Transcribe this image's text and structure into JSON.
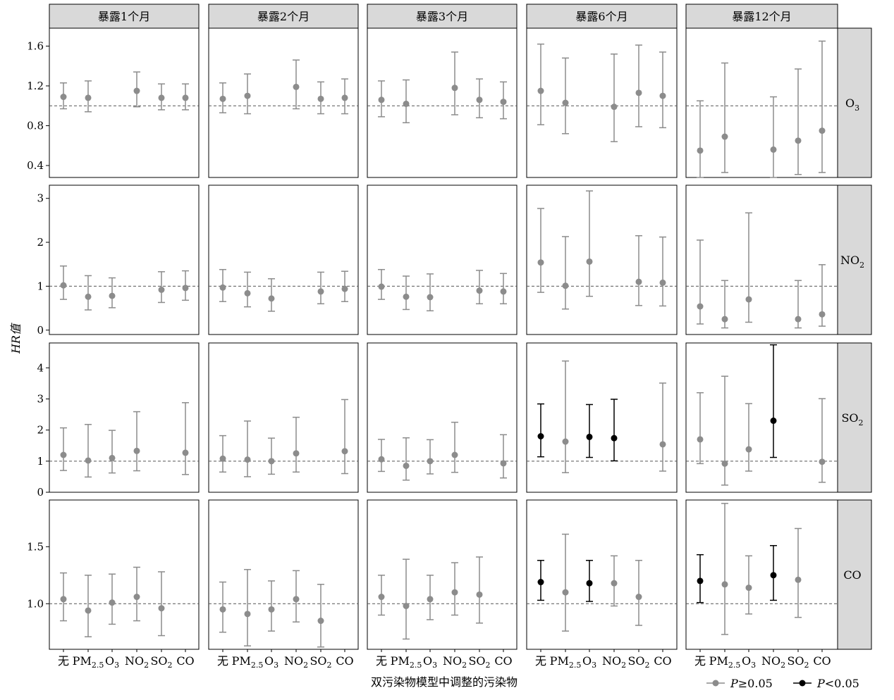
{
  "chart_data": {
    "type": "forest",
    "ylabel": "HR值",
    "xlabel": "双污染物模型中调整的污染物",
    "x_categories": [
      "无",
      "PM2.5",
      "O3",
      "NO2",
      "SO2",
      "CO"
    ],
    "x_tick_parts": [
      {
        "main": "无",
        "sub": ""
      },
      {
        "main": "PM",
        "sub": "2.5"
      },
      {
        "main": "O",
        "sub": "3"
      },
      {
        "main": "NO",
        "sub": "2"
      },
      {
        "main": "SO",
        "sub": "2"
      },
      {
        "main": "CO",
        "sub": ""
      }
    ],
    "columns": [
      "暴露1个月",
      "暴露2个月",
      "暴露3个月",
      "暴露6个月",
      "暴露12个月"
    ],
    "rows": [
      {
        "label": "O3",
        "label_main": "O",
        "label_sub": "3",
        "ylim": [
          0.28,
          1.78
        ],
        "yticks": [
          0.4,
          0.8,
          1.2,
          1.6
        ],
        "tick_labels": [
          "0.4",
          "0.8",
          "1.2",
          "1.6"
        ]
      },
      {
        "label": "NO2",
        "label_main": "NO",
        "label_sub": "2",
        "ylim": [
          -0.1,
          3.3
        ],
        "yticks": [
          0,
          1,
          2,
          3
        ],
        "tick_labels": [
          "0",
          "1",
          "2",
          "3"
        ]
      },
      {
        "label": "SO2",
        "label_main": "SO",
        "label_sub": "2",
        "ylim": [
          0,
          4.8
        ],
        "yticks": [
          0,
          1,
          2,
          3,
          4
        ],
        "tick_labels": [
          "0",
          "1",
          "2",
          "3",
          "4"
        ]
      },
      {
        "label": "CO",
        "label_main": "CO",
        "label_sub": "",
        "ylim": [
          0.6,
          1.91
        ],
        "yticks": [
          1.0,
          1.5
        ],
        "tick_labels": [
          "1.0",
          "1.5"
        ]
      }
    ],
    "reference_line": 1,
    "legend": [
      {
        "label": "P≥0.05",
        "label_italic": "P",
        "label_rest": "≥0.05",
        "color": "#8c8c8c"
      },
      {
        "label": "P<0.05",
        "label_italic": "P",
        "label_rest": "<0.05",
        "color": "#000000"
      }
    ],
    "colors": {
      "nonsig": "#8c8c8c",
      "sig": "#000000",
      "strip": "#d9d9d9"
    },
    "panels": [
      [
        [
          [
            1.09,
            0.97,
            1.23,
            false
          ],
          [
            1.08,
            0.94,
            1.25,
            false
          ],
          null,
          [
            1.15,
            0.99,
            1.34,
            false
          ],
          [
            1.08,
            0.96,
            1.22,
            false
          ],
          [
            1.08,
            0.96,
            1.22,
            false
          ]
        ],
        [
          [
            1.07,
            0.93,
            1.23,
            false
          ],
          [
            1.1,
            0.92,
            1.32,
            false
          ],
          null,
          [
            1.19,
            0.97,
            1.46,
            false
          ],
          [
            1.07,
            0.92,
            1.24,
            false
          ],
          [
            1.08,
            0.92,
            1.27,
            false
          ]
        ],
        [
          [
            1.06,
            0.89,
            1.25,
            false
          ],
          [
            1.02,
            0.83,
            1.26,
            false
          ],
          null,
          [
            1.18,
            0.91,
            1.54,
            false
          ],
          [
            1.06,
            0.88,
            1.27,
            false
          ],
          [
            1.04,
            0.87,
            1.24,
            false
          ]
        ],
        [
          [
            1.15,
            0.81,
            1.62,
            false
          ],
          [
            1.03,
            0.72,
            1.48,
            false
          ],
          null,
          [
            0.99,
            0.64,
            1.52,
            false
          ],
          [
            1.13,
            0.79,
            1.61,
            false
          ],
          [
            1.1,
            0.78,
            1.54,
            false
          ]
        ],
        [
          [
            0.55,
            0.28,
            1.05,
            false
          ],
          [
            0.69,
            0.33,
            1.43,
            false
          ],
          null,
          [
            0.56,
            0.28,
            1.09,
            false
          ],
          [
            0.65,
            0.31,
            1.37,
            false
          ],
          [
            0.75,
            0.33,
            1.65,
            false
          ]
        ]
      ],
      [
        [
          [
            1.02,
            0.7,
            1.46,
            false
          ],
          [
            0.76,
            0.46,
            1.24,
            false
          ],
          [
            0.78,
            0.51,
            1.19,
            false
          ],
          null,
          [
            0.92,
            0.63,
            1.33,
            false
          ],
          [
            0.96,
            0.68,
            1.35,
            false
          ]
        ],
        [
          [
            0.97,
            0.65,
            1.38,
            false
          ],
          [
            0.84,
            0.53,
            1.32,
            false
          ],
          [
            0.72,
            0.43,
            1.17,
            false
          ],
          null,
          [
            0.88,
            0.6,
            1.32,
            false
          ],
          [
            0.94,
            0.65,
            1.34,
            false
          ]
        ],
        [
          [
            0.99,
            0.7,
            1.38,
            false
          ],
          [
            0.76,
            0.47,
            1.23,
            false
          ],
          [
            0.75,
            0.44,
            1.28,
            false
          ],
          null,
          [
            0.9,
            0.6,
            1.36,
            false
          ],
          [
            0.88,
            0.6,
            1.29,
            false
          ]
        ],
        [
          [
            1.54,
            0.86,
            2.77,
            false
          ],
          [
            1.01,
            0.48,
            2.13,
            false
          ],
          [
            1.56,
            0.77,
            3.17,
            false
          ],
          null,
          [
            1.1,
            0.56,
            2.15,
            false
          ],
          [
            1.08,
            0.55,
            2.12,
            false
          ]
        ],
        [
          [
            0.54,
            0.14,
            2.05,
            false
          ],
          [
            0.25,
            0.05,
            1.13,
            false
          ],
          [
            0.7,
            0.18,
            2.67,
            false
          ],
          null,
          [
            0.25,
            0.05,
            1.13,
            false
          ],
          [
            0.36,
            0.09,
            1.49,
            false
          ]
        ]
      ],
      [
        [
          [
            1.2,
            0.7,
            2.07,
            false
          ],
          [
            1.02,
            0.49,
            2.18,
            false
          ],
          [
            1.1,
            0.62,
            1.99,
            false
          ],
          [
            1.33,
            0.69,
            2.59,
            false
          ],
          null,
          [
            1.27,
            0.57,
            2.88,
            false
          ]
        ],
        [
          [
            1.08,
            0.65,
            1.82,
            false
          ],
          [
            1.05,
            0.5,
            2.29,
            false
          ],
          [
            1.0,
            0.58,
            1.74,
            false
          ],
          [
            1.25,
            0.65,
            2.41,
            false
          ],
          null,
          [
            1.32,
            0.6,
            2.98,
            false
          ]
        ],
        [
          [
            1.06,
            0.67,
            1.7,
            false
          ],
          [
            0.85,
            0.39,
            1.75,
            false
          ],
          [
            1.0,
            0.59,
            1.69,
            false
          ],
          [
            1.2,
            0.64,
            2.25,
            false
          ],
          null,
          [
            0.93,
            0.46,
            1.85,
            false
          ]
        ],
        [
          [
            1.8,
            1.14,
            2.84,
            true
          ],
          [
            1.63,
            0.63,
            4.22,
            false
          ],
          [
            1.78,
            1.12,
            2.82,
            true
          ],
          [
            1.74,
            1.01,
            2.99,
            true
          ],
          null,
          [
            1.54,
            0.68,
            3.51,
            false
          ]
        ],
        [
          [
            1.7,
            0.92,
            3.2,
            false
          ],
          [
            0.92,
            0.23,
            3.73,
            false
          ],
          [
            1.38,
            0.68,
            2.85,
            false
          ],
          [
            2.3,
            1.12,
            4.74,
            true
          ],
          null,
          [
            0.98,
            0.32,
            3.01,
            false
          ]
        ]
      ],
      [
        [
          [
            1.04,
            0.85,
            1.27,
            false
          ],
          [
            0.94,
            0.71,
            1.25,
            false
          ],
          [
            1.01,
            0.82,
            1.26,
            false
          ],
          [
            1.06,
            0.85,
            1.32,
            false
          ],
          [
            0.96,
            0.72,
            1.28,
            false
          ],
          null
        ],
        [
          [
            0.95,
            0.75,
            1.19,
            false
          ],
          [
            0.91,
            0.63,
            1.3,
            false
          ],
          [
            0.95,
            0.76,
            1.2,
            false
          ],
          [
            1.04,
            0.84,
            1.29,
            false
          ],
          [
            0.85,
            0.62,
            1.17,
            false
          ],
          null
        ],
        [
          [
            1.06,
            0.9,
            1.25,
            false
          ],
          [
            0.98,
            0.69,
            1.39,
            false
          ],
          [
            1.04,
            0.86,
            1.25,
            false
          ],
          [
            1.1,
            0.9,
            1.36,
            false
          ],
          [
            1.08,
            0.83,
            1.41,
            false
          ],
          null
        ],
        [
          [
            1.19,
            1.03,
            1.38,
            true
          ],
          [
            1.1,
            0.76,
            1.61,
            false
          ],
          [
            1.18,
            1.02,
            1.38,
            true
          ],
          [
            1.18,
            0.98,
            1.42,
            false
          ],
          [
            1.06,
            0.81,
            1.38,
            false
          ],
          null
        ],
        [
          [
            1.2,
            1.01,
            1.43,
            true
          ],
          [
            1.17,
            0.73,
            1.88,
            false
          ],
          [
            1.14,
            0.91,
            1.42,
            false
          ],
          [
            1.25,
            1.03,
            1.51,
            true
          ],
          [
            1.21,
            0.88,
            1.66,
            false
          ],
          null
        ]
      ]
    ]
  }
}
